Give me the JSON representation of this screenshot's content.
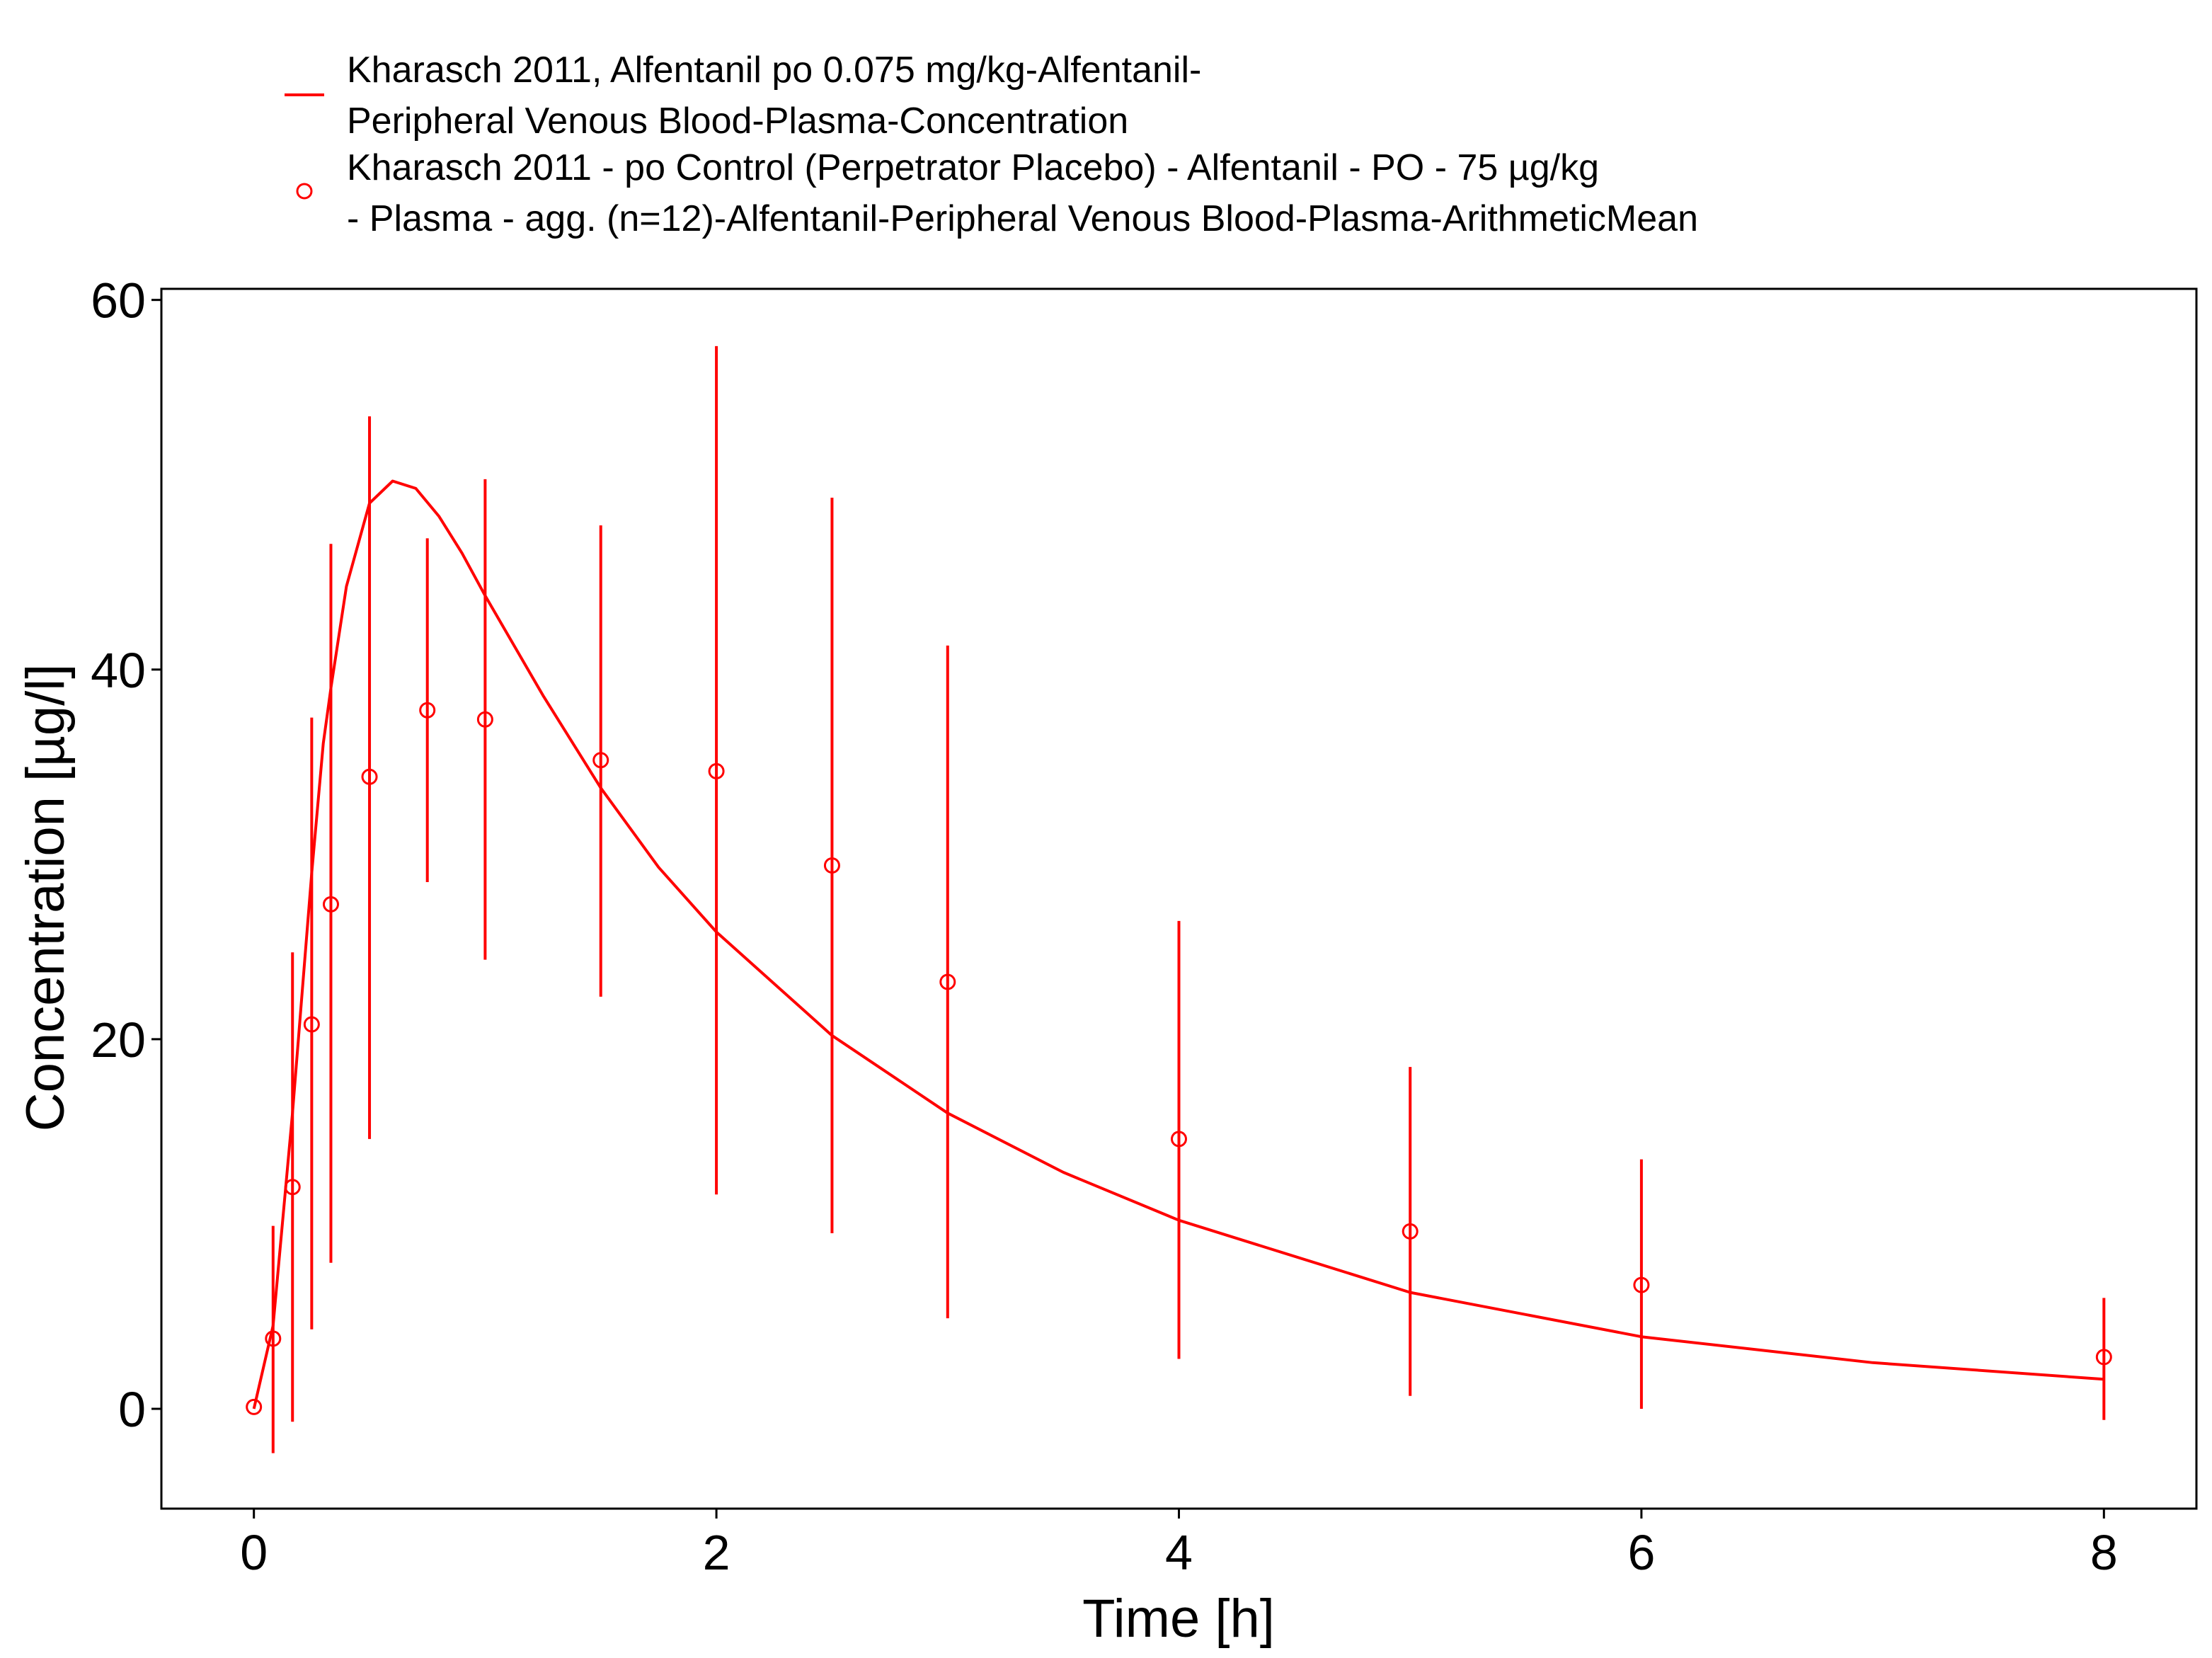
{
  "chart_data": {
    "type": "scatter",
    "title": "",
    "xlabel": "Time [h]",
    "ylabel": "Concentration [µg/l]",
    "xlim": [
      -0.4,
      8.4
    ],
    "ylim": [
      -5.4,
      60.6
    ],
    "x_ticks": [
      0,
      2,
      4,
      6,
      8
    ],
    "y_ticks": [
      0,
      20,
      40,
      60
    ],
    "grid": false,
    "legend_position": "top",
    "series": [
      {
        "name": "Kharasch 2011, Alfentanil po 0.075 mg/kg-Alfentanil-Peripheral Venous Blood-Plasma-Concentration",
        "legend_lines": [
          "Kharasch 2011, Alfentanil po 0.075 mg/kg-Alfentanil-",
          "Peripheral Venous Blood-Plasma-Concentration"
        ],
        "kind": "line",
        "color": "#ff0000",
        "x": [
          0,
          0.083,
          0.167,
          0.25,
          0.3,
          0.333,
          0.4,
          0.5,
          0.6,
          0.7,
          0.8,
          0.9,
          1.0,
          1.25,
          1.5,
          1.75,
          2.0,
          2.5,
          3.0,
          3.5,
          4.0,
          5.0,
          6.0,
          7.0,
          8.0
        ],
        "y": [
          0,
          4.5,
          16,
          29,
          36,
          39,
          44.5,
          49,
          50.2,
          49.8,
          48.3,
          46.3,
          44,
          38.6,
          33.6,
          29.3,
          25.8,
          20.2,
          16.0,
          12.8,
          10.2,
          6.3,
          3.9,
          2.5,
          1.6
        ]
      },
      {
        "name": "Kharasch 2011 - po Control (Perpetrator Placebo) - Alfentanil - PO - 75 µg/kg - Plasma - agg. (n=12)-Alfentanil-Peripheral Venous Blood-Plasma-ArithmeticMean",
        "legend_lines": [
          "Kharasch 2011 - po Control (Perpetrator Placebo) - Alfentanil - PO - 75 µg/kg",
          "- Plasma - agg. (n=12)-Alfentanil-Peripheral Venous Blood-Plasma-ArithmeticMean"
        ],
        "kind": "points_with_errorbars",
        "color": "#ff0000",
        "x": [
          0,
          0.083,
          0.167,
          0.25,
          0.333,
          0.5,
          0.75,
          1.0,
          1.5,
          2.0,
          2.5,
          3.0,
          4.0,
          5.0,
          6.0,
          8.0
        ],
        "y": [
          0.1,
          3.8,
          12.0,
          20.8,
          27.3,
          34.2,
          37.8,
          37.3,
          35.1,
          34.5,
          29.4,
          23.1,
          14.6,
          9.6,
          6.7,
          2.8
        ],
        "y_lower": [
          null,
          -2.4,
          -0.7,
          4.3,
          7.9,
          14.6,
          28.5,
          24.3,
          22.3,
          11.6,
          9.5,
          4.9,
          2.7,
          0.7,
          0.0,
          -0.6
        ],
        "y_upper": [
          null,
          9.9,
          24.7,
          37.4,
          46.8,
          53.7,
          47.1,
          50.3,
          47.8,
          57.5,
          49.3,
          41.3,
          26.4,
          18.5,
          13.5,
          6.0
        ]
      }
    ]
  }
}
